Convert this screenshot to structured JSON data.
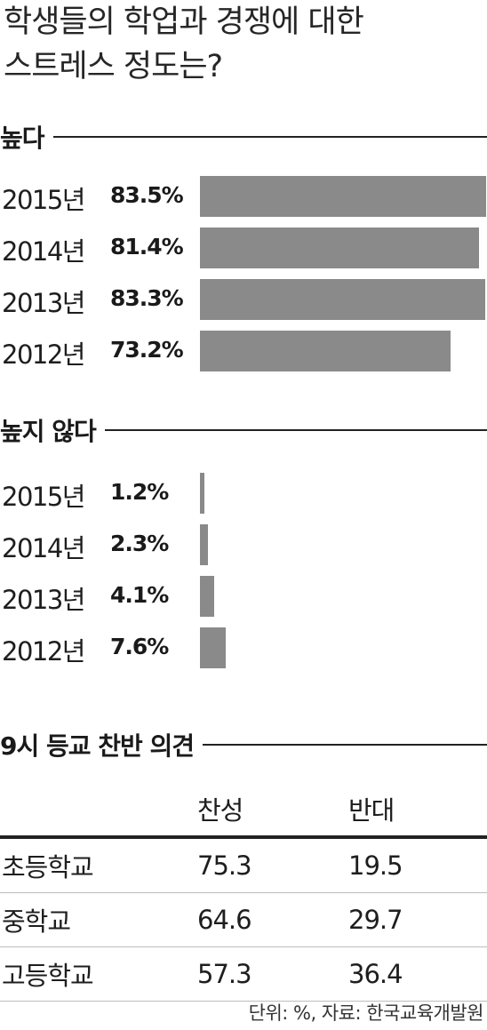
{
  "title_line1": "학생들의 학업과 경쟁에 대한",
  "title_line2": "스트레스 정도는?",
  "chart_data": [
    {
      "type": "bar",
      "title": "높다",
      "categories": [
        "2015년",
        "2014년",
        "2013년",
        "2012년"
      ],
      "values": [
        83.5,
        81.4,
        83.3,
        73.2
      ],
      "value_labels": [
        "83.5%",
        "81.4%",
        "83.3%",
        "73.2%"
      ],
      "unit": "%",
      "xlim": [
        0,
        83.5
      ],
      "color": "#8a8a8a",
      "orientation": "horizontal"
    },
    {
      "type": "bar",
      "title": "높지 않다",
      "categories": [
        "2015년",
        "2014년",
        "2013년",
        "2012년"
      ],
      "values": [
        1.2,
        2.3,
        4.1,
        7.6
      ],
      "value_labels": [
        "1.2%",
        "2.3%",
        "4.1%",
        "7.6%"
      ],
      "unit": "%",
      "xlim": [
        0,
        83.5
      ],
      "color": "#8a8a8a",
      "orientation": "horizontal"
    },
    {
      "type": "table",
      "title": "9시 등교 찬반 의견",
      "columns": [
        "",
        "찬성",
        "반대"
      ],
      "rows": [
        [
          "초등학교",
          "75.3",
          "19.5"
        ],
        [
          "중학교",
          "64.6",
          "29.7"
        ],
        [
          "고등학교",
          "57.3",
          "36.4"
        ]
      ]
    }
  ],
  "source": "단위: %, 자료: 한국교육개발원"
}
